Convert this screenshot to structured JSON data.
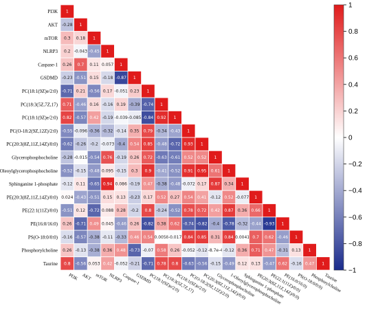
{
  "chart_data": {
    "type": "heatmap",
    "title": "",
    "labels": [
      "PI3K",
      "AKT",
      "mTOR",
      "NLRP3",
      "Caspase-1",
      "GSDMD",
      "PC(18:1(9Z)e/2:0)",
      "PC(18:3(5Z,7Z,17)",
      "PC(18:1(9Z)e/2:0)",
      "PC(O-18:2(9Z,12Z)/2:0)",
      "PC(20:3(8Z,11Z,14Z)/0:0)",
      "Glycerophosphocholine",
      "1-Oleoylglycerophosphocholine",
      "Sphinganine 1-phosphate",
      "PE(20:3(8Z,11Z,14Z)/0:0)",
      "PE(22:1(11Z)/0:0)",
      "PE(16:0/16:0)",
      "PS(O-18:0/0:0)",
      "Phosphorylcholine",
      "Taurine"
    ],
    "values": [
      [
        1
      ],
      [
        -0.28,
        1
      ],
      [
        0.3,
        0.18,
        1
      ],
      [
        0.2,
        -0.043,
        -0.45,
        1
      ],
      [
        0.26,
        0.7,
        0.11,
        0.057,
        1
      ],
      [
        -0.23,
        -0.51,
        0.15,
        -0.18,
        -0.87,
        1
      ],
      [
        -0.71,
        0.21,
        -0.56,
        0.17,
        -0.051,
        0.23,
        1
      ],
      [
        0.71,
        -0.46,
        0.16,
        -0.16,
        0.19,
        -0.39,
        -0.74,
        1
      ],
      [
        0.82,
        -0.57,
        0.42,
        -0.19,
        -0.039,
        -0.085,
        -0.84,
        0.92,
        1
      ],
      [
        -0.55,
        -0.096,
        -0.36,
        -0.32,
        -0.14,
        0.35,
        0.79,
        -0.34,
        -0.43,
        1
      ],
      [
        -0.62,
        -0.26,
        -0.2,
        -0.073,
        -0.4,
        0.54,
        0.85,
        -0.48,
        -0.72,
        0.93,
        1
      ],
      [
        -0.28,
        -0.015,
        -0.54,
        0.76,
        -0.19,
        0.26,
        0.72,
        -0.63,
        -0.61,
        0.52,
        0.52,
        1
      ],
      [
        -0.52,
        -0.15,
        -0.48,
        0.095,
        -0.15,
        0.3,
        0.9,
        -0.41,
        -0.52,
        0.91,
        0.95,
        0.61,
        1
      ],
      [
        -0.12,
        0.11,
        -0.65,
        0.94,
        0.086,
        -0.19,
        0.47,
        -0.38,
        -0.48,
        -0.072,
        0.17,
        0.87,
        0.34,
        1
      ],
      [
        0.024,
        -0.43,
        -0.51,
        0.15,
        0.13,
        -0.23,
        0.17,
        0.52,
        0.27,
        0.54,
        0.41,
        -0.12,
        0.52,
        -0.077,
        1
      ],
      [
        -0.51,
        0.12,
        -0.72,
        0.088,
        0.28,
        -0.2,
        0.8,
        -0.24,
        -0.52,
        0.78,
        0.72,
        0.42,
        0.87,
        0.36,
        0.66,
        1
      ],
      [
        0.26,
        -0.71,
        0.49,
        0.045,
        -0.46,
        0.26,
        -0.82,
        0.38,
        0.62,
        -0.74,
        -0.82,
        -0.4,
        -0.78,
        -0.32,
        -0.44,
        -0.93,
        1
      ],
      [
        -0.16,
        -0.57,
        -0.38,
        -0.11,
        -0.33,
        0.46,
        0.54,
        0.0058,
        -0.017,
        0.84,
        0.85,
        0.31,
        0.84,
        0.0041,
        0.7,
        0.62,
        -0.46,
        1
      ],
      [
        0.26,
        -0.13,
        -0.38,
        0.36,
        0.48,
        -0.73,
        -0.07,
        0.58,
        0.26,
        -0.052,
        -0.12,
        -0.00087,
        -0.12,
        0.36,
        0.71,
        0.47,
        -0.31,
        0.13,
        1
      ],
      [
        0.8,
        -0.56,
        0.053,
        0.42,
        -0.052,
        -0.21,
        -0.71,
        0.78,
        0.8,
        -0.63,
        -0.56,
        -0.15,
        -0.49,
        0.12,
        0.13,
        -0.47,
        0.62,
        -0.16,
        0.47,
        1
      ]
    ],
    "display_text": [
      [
        "1"
      ],
      [
        "-0.28",
        "1"
      ],
      [
        "0.3",
        "0.18",
        "1"
      ],
      [
        "0.2",
        "-0.043",
        "-0.45",
        "1"
      ],
      [
        "0.26",
        "0.7",
        "0.11",
        "0.057",
        "1"
      ],
      [
        "-0.23",
        "-0.51",
        "0.15",
        "-0.18",
        "-0.87",
        "1"
      ],
      [
        "-0.71",
        "0.21",
        "-0.56",
        "0.17",
        "-0.051",
        "0.23",
        "1"
      ],
      [
        "0.71",
        "-0.46",
        "0.16",
        "-0.16",
        "0.19",
        "-0.39",
        "-0.74",
        "1"
      ],
      [
        "0.82",
        "-0.57",
        "0.42",
        "-0.19",
        "-0.039",
        "-0.085",
        "-0.84",
        "0.92",
        "1"
      ],
      [
        "-0.55",
        "-0.096",
        "-0.36",
        "-0.32",
        "-0.14",
        "0.35",
        "0.79",
        "-0.34",
        "-0.43",
        "1"
      ],
      [
        "-0.62",
        "-0.26",
        "-0.2",
        "-0.073",
        "-0.4",
        "0.54",
        "0.85",
        "-0.48",
        "-0.72",
        "0.93",
        "1"
      ],
      [
        "-0.28",
        "-0.015",
        "-0.54",
        "0.76",
        "-0.19",
        "0.26",
        "0.72",
        "-0.63",
        "-0.61",
        "0.52",
        "0.52",
        "1"
      ],
      [
        "-0.52",
        "-0.15",
        "-0.48",
        "0.095",
        "-0.15",
        "0.3",
        "0.9",
        "-0.41",
        "-0.52",
        "0.91",
        "0.95",
        "0.61",
        "1"
      ],
      [
        "-0.12",
        "0.11",
        "-0.65",
        "0.94",
        "0.086",
        "-0.19",
        "0.47",
        "-0.38",
        "-0.48",
        "-0.072",
        "0.17",
        "0.87",
        "0.34",
        "1"
      ],
      [
        "0.024",
        "-0.43",
        "-0.51",
        "0.15",
        "0.13",
        "-0.23",
        "0.17",
        "0.52",
        "0.27",
        "0.54",
        "0.41",
        "-0.12",
        "0.52",
        "-0.077",
        "1"
      ],
      [
        "-0.51",
        "0.12",
        "-0.72",
        "0.088",
        "0.28",
        "-0.2",
        "0.8",
        "-0.24",
        "-0.52",
        "0.78",
        "0.72",
        "0.42",
        "0.87",
        "0.36",
        "0.66",
        "1"
      ],
      [
        "0.26",
        "-0.71",
        "0.49",
        "0.045",
        "-0.46",
        "0.26",
        "-0.82",
        "0.38",
        "0.62",
        "-0.74",
        "-0.82",
        "-0.4",
        "-0.78",
        "-0.32",
        "-0.44",
        "-0.93",
        "1"
      ],
      [
        "-0.16",
        "-0.57",
        "-0.38",
        "-0.11",
        "-0.33",
        "0.46",
        "0.54",
        "0.0058",
        "-0.017",
        "0.84",
        "0.85",
        "0.31",
        "0.84",
        "0.0041",
        "0.7",
        "0.62",
        "-0.46",
        "1"
      ],
      [
        "0.26",
        "-0.13",
        "-0.38",
        "0.36",
        "0.48",
        "-0.73",
        "-0.07",
        "0.58",
        "0.26",
        "-0.052",
        "-0.12",
        "-8.7e-4",
        "-0.12",
        "0.36",
        "0.71",
        "0.47",
        "-0.31",
        "0.13",
        "1"
      ],
      [
        "0.8",
        "-0.56",
        "0.053",
        "0.42",
        "-0.052",
        "-0.21",
        "-0.71",
        "0.78",
        "0.8",
        "-0.63",
        "-0.56",
        "-0.15",
        "-0.49",
        "0.12",
        "0.13",
        "-0.47",
        "0.62",
        "-0.16",
        "0.47",
        "1"
      ]
    ],
    "colorbar": {
      "range": [
        -1,
        1
      ],
      "ticks": [
        1,
        0.8,
        0.6,
        0.4,
        0.2,
        0,
        -0.2,
        -0.4,
        -0.6,
        -0.8,
        -1
      ],
      "tick_labels": [
        "1",
        "0.8",
        "0.6",
        "0.4",
        "0.2",
        "0",
        "−0.2",
        "−0.4",
        "−0.6",
        "−0.8",
        "−1"
      ],
      "colors": {
        "negative": "#1a2b8c",
        "neutral": "#ffffff",
        "positive": "#e01b1b"
      }
    }
  }
}
